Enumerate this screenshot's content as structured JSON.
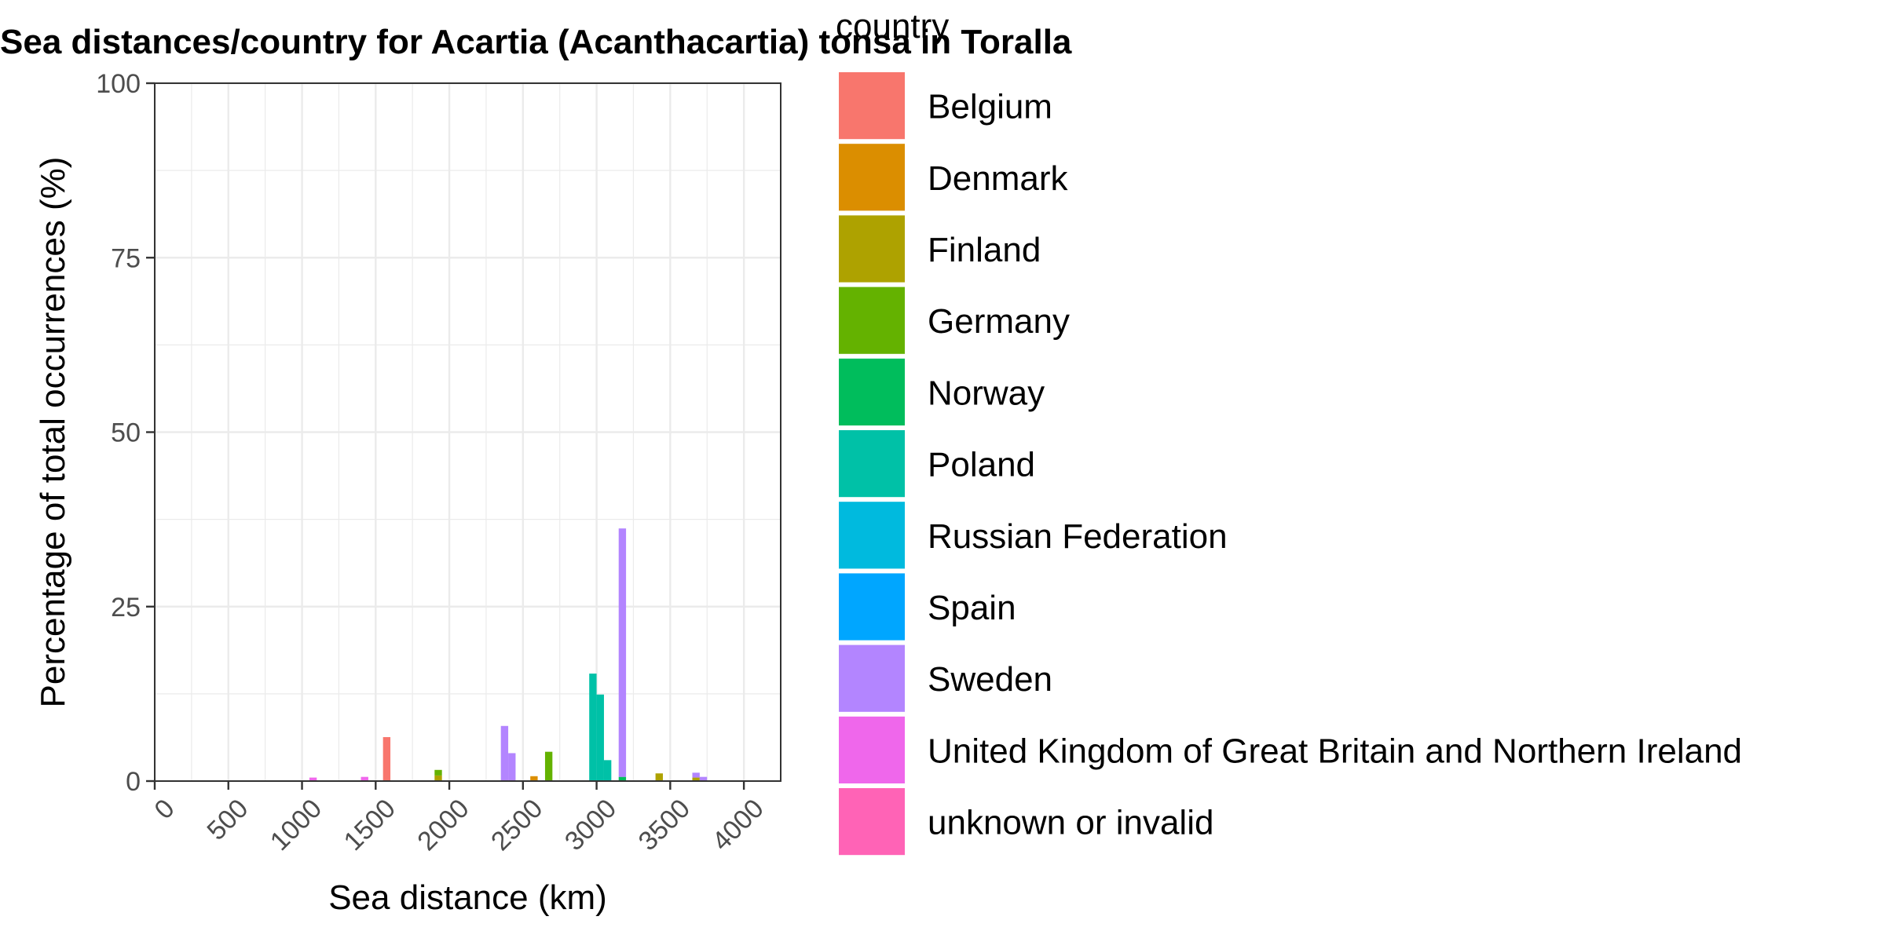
{
  "chart_data": {
    "type": "bar",
    "stacked": true,
    "title": "Sea distances/country for Acartia (Acanthacartia) tonsa in Toralla",
    "xlabel": "Sea distance (km)",
    "ylabel": "Percentage of total occurrences (%)",
    "xlim": [
      0,
      4250
    ],
    "ylim": [
      0,
      100
    ],
    "x_ticks": [
      0,
      500,
      1000,
      1500,
      2000,
      2500,
      3000,
      3500,
      4000
    ],
    "y_ticks": [
      0,
      25,
      50,
      75,
      100
    ],
    "bin_width": 50,
    "grid": true,
    "legend_title": "country",
    "legend_position": "right",
    "series": [
      {
        "name": "Belgium",
        "color": "#F8766D",
        "bars": [
          {
            "x": 1575,
            "y": 6.3
          }
        ]
      },
      {
        "name": "Denmark",
        "color": "#DB8E00",
        "bars": [
          {
            "x": 2575,
            "y": 0.7
          }
        ]
      },
      {
        "name": "Finland",
        "color": "#AEA200",
        "bars": [
          {
            "x": 1925,
            "y": 0.8
          },
          {
            "x": 3425,
            "y": 1.1
          },
          {
            "x": 3675,
            "y": 0.5
          }
        ]
      },
      {
        "name": "Germany",
        "color": "#64B200",
        "bars": [
          {
            "x": 1925,
            "y": 0.8
          },
          {
            "x": 2675,
            "y": 4.2
          }
        ]
      },
      {
        "name": "Norway",
        "color": "#00BD5C",
        "bars": [
          {
            "x": 3175,
            "y": 0.6
          }
        ]
      },
      {
        "name": "Poland",
        "color": "#00C1A7",
        "bars": [
          {
            "x": 2975,
            "y": 15.4
          },
          {
            "x": 3025,
            "y": 12.4
          },
          {
            "x": 3075,
            "y": 3.0
          }
        ]
      },
      {
        "name": "Russian Federation",
        "color": "#00BADE",
        "bars": []
      },
      {
        "name": "Spain",
        "color": "#00A6FF",
        "bars": []
      },
      {
        "name": "Sweden",
        "color": "#B385FF",
        "bars": [
          {
            "x": 2375,
            "y": 7.9
          },
          {
            "x": 2425,
            "y": 4.0
          },
          {
            "x": 3175,
            "y": 35.6
          },
          {
            "x": 3675,
            "y": 0.7
          },
          {
            "x": 3725,
            "y": 0.6
          }
        ]
      },
      {
        "name": "United Kingdom of Great Britain and Northern Ireland",
        "color": "#EF67EB",
        "bars": [
          {
            "x": 1075,
            "y": 0.5
          },
          {
            "x": 1425,
            "y": 0.6
          }
        ]
      },
      {
        "name": "unknown or invalid",
        "color": "#FF63B6",
        "bars": []
      }
    ]
  }
}
